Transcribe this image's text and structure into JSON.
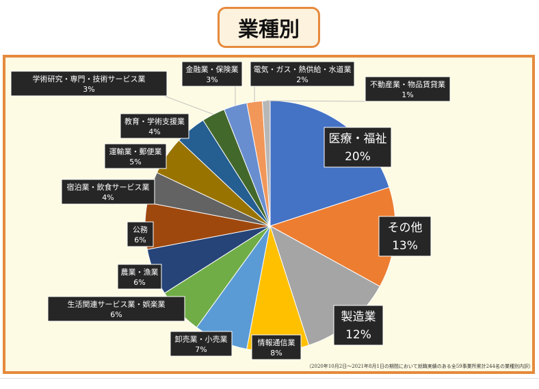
{
  "page": {
    "title": "業種別"
  },
  "chart_data": {
    "type": "pie",
    "title": "業種別",
    "slices": [
      {
        "label": "医療・福祉",
        "value_label": "20%",
        "value": 20,
        "color": "#4472c4"
      },
      {
        "label": "その他",
        "value_label": "13%",
        "value": 13,
        "color": "#ed7d31"
      },
      {
        "label": "製造業",
        "value_label": "12%",
        "value": 12,
        "color": "#a5a5a5"
      },
      {
        "label": "情報通信業",
        "value_label": "8%",
        "value": 8,
        "color": "#ffc000"
      },
      {
        "label": "卸売業・小売業",
        "value_label": "7%",
        "value": 7,
        "color": "#5b9bd5"
      },
      {
        "label": "生活関連サービス業・娯楽業",
        "value_label": "6%",
        "value": 6,
        "color": "#70ad47"
      },
      {
        "label": "農業・漁業",
        "value_label": "6%",
        "value": 6,
        "color": "#264478"
      },
      {
        "label": "公務",
        "value_label": "6%",
        "value": 6,
        "color": "#9e480e"
      },
      {
        "label": "宿泊業・飲食サービス業",
        "value_label": "4%",
        "value": 4,
        "color": "#636363"
      },
      {
        "label": "運輸業・郵便業",
        "value_label": "5%",
        "value": 5,
        "color": "#997300"
      },
      {
        "label": "教育・学術支援業",
        "value_label": "4%",
        "value": 4,
        "color": "#255e91"
      },
      {
        "label": "学術研究・専門・技術サービス業",
        "value_label": "3%",
        "value": 3,
        "color": "#43682b"
      },
      {
        "label": "金融業・保険業",
        "value_label": "3%",
        "value": 3,
        "color": "#698ed0"
      },
      {
        "label": "電気・ガス・熱供給・水道業",
        "value_label": "2%",
        "value": 2,
        "color": "#f1975a"
      },
      {
        "label": "不動産業・物品賃貸業",
        "value_label": "1%",
        "value": 1,
        "color": "#b7b7b7"
      }
    ]
  },
  "footnote": "（2020年10月2日～2021年8月1日の期間において就職実績のある全59事業所累計244名の業種別内訳）"
}
